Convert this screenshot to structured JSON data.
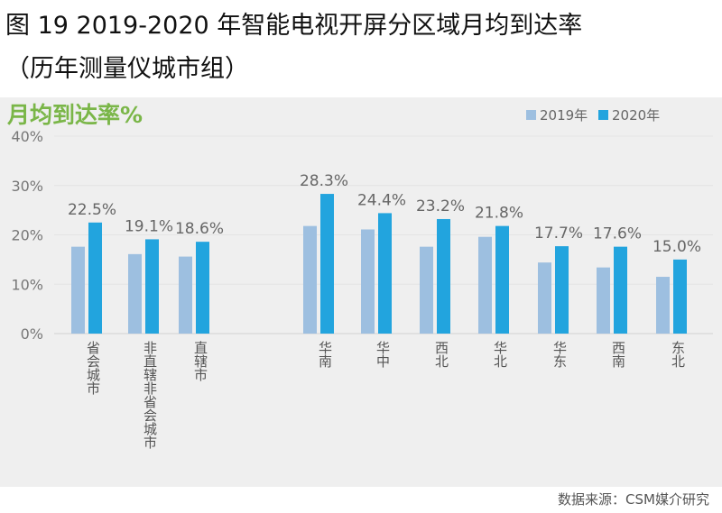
{
  "title": "图 19 2019-2020 年智能电视开屏分区域月均到达率",
  "subtitle": "（历年测量仪城市组）",
  "source": "数据来源：CSM媒介研究",
  "chart_data": {
    "type": "bar",
    "title": "月均到达率%",
    "ylabel": "月均到达率%",
    "ylim": [
      0,
      40
    ],
    "yticks": [
      "0%",
      "10%",
      "20%",
      "30%",
      "40%"
    ],
    "grid": true,
    "legend_position": "top-right",
    "categories": [
      "省会城市",
      "非直辖非省会城市",
      "直辖市",
      "华南",
      "华中",
      "西北",
      "华北",
      "华东",
      "西南",
      "东北"
    ],
    "series": [
      {
        "name": "2019年",
        "color": "#9dbfe0",
        "values": [
          17.6,
          16.1,
          15.6,
          21.8,
          21.1,
          17.6,
          19.6,
          14.4,
          13.4,
          11.5
        ]
      },
      {
        "name": "2020年",
        "color": "#22a4de",
        "values": [
          22.5,
          19.1,
          18.6,
          28.3,
          24.4,
          23.2,
          21.8,
          17.7,
          17.6,
          15.0
        ]
      }
    ],
    "data_labels": [
      "22.5%",
      "19.1%",
      "18.6%",
      "28.3%",
      "24.4%",
      "23.2%",
      "21.8%",
      "17.7%",
      "17.6%",
      "15.0%"
    ]
  }
}
